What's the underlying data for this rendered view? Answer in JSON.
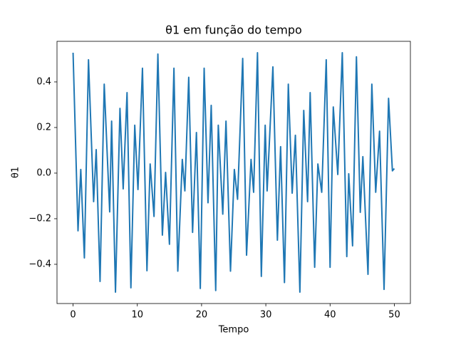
{
  "chart_data": {
    "type": "line",
    "title": "θ1 em função do tempo",
    "xlabel": "Tempo",
    "ylabel": "θ1",
    "xlim": [
      -2.5,
      52.5
    ],
    "ylim": [
      -0.572,
      0.578
    ],
    "xticks": [
      0,
      10,
      20,
      30,
      40,
      50
    ],
    "yticks": [
      {
        "value": -0.4,
        "label": "−0.4"
      },
      {
        "value": -0.2,
        "label": "−0.2"
      },
      {
        "value": 0,
        "label": "0.0"
      },
      0.2,
      0.4
    ],
    "grid": false,
    "series": [
      {
        "name": "θ1",
        "color": "#1f77b4",
        "x": [
          0,
          0.77,
          1.2,
          1.76,
          2.4,
          3.2,
          3.6,
          4.2,
          4.85,
          5.7,
          6.0,
          6.6,
          7.3,
          7.8,
          8.4,
          9.0,
          9.6,
          10.1,
          10.8,
          11.5,
          12.0,
          12.6,
          13.2,
          13.9,
          14.4,
          15.0,
          15.7,
          16.3,
          17.0,
          17.4,
          18.0,
          18.6,
          19.2,
          19.8,
          20.4,
          21.0,
          21.5,
          22.2,
          22.6,
          23.3,
          23.8,
          24.5,
          25.1,
          25.6,
          26.4,
          27.0,
          27.7,
          28.1,
          28.7,
          29.3,
          29.9,
          30.2,
          31.1,
          31.8,
          32.3,
          32.9,
          33.5,
          34.1,
          34.6,
          35.3,
          35.9,
          36.5,
          36.9,
          37.6,
          38.1,
          38.7,
          39.4,
          40.0,
          40.5,
          41.2,
          41.9,
          42.6,
          42.9,
          43.5,
          44.1,
          44.7,
          45.1,
          45.9,
          46.5,
          47.1,
          47.7,
          48.4,
          49.1,
          49.7,
          50
        ],
        "values": [
          0.528,
          -0.253,
          0.016,
          -0.372,
          0.497,
          -0.125,
          0.103,
          -0.475,
          0.39,
          -0.17,
          0.228,
          -0.522,
          0.284,
          -0.069,
          0.353,
          -0.503,
          0.21,
          -0.072,
          0.46,
          -0.428,
          0.04,
          -0.19,
          0.522,
          -0.272,
          0.003,
          -0.312,
          0.46,
          -0.43,
          0.06,
          -0.078,
          0.42,
          -0.26,
          0.178,
          -0.506,
          0.46,
          -0.13,
          0.297,
          -0.515,
          0.21,
          -0.18,
          0.228,
          -0.43,
          0.016,
          -0.115,
          0.503,
          -0.36,
          0.06,
          -0.084,
          0.528,
          -0.453,
          0.21,
          -0.078,
          0.466,
          -0.294,
          0.116,
          -0.48,
          0.39,
          -0.088,
          0.166,
          -0.522,
          0.275,
          -0.125,
          0.353,
          -0.413,
          0.04,
          -0.084,
          0.497,
          -0.413,
          0.29,
          -0.006,
          0.528,
          -0.366,
          -0.003,
          -0.319,
          0.51,
          -0.172,
          0.072,
          -0.444,
          0.39,
          -0.084,
          0.184,
          -0.51,
          0.328,
          0.01,
          0.02
        ]
      }
    ]
  }
}
